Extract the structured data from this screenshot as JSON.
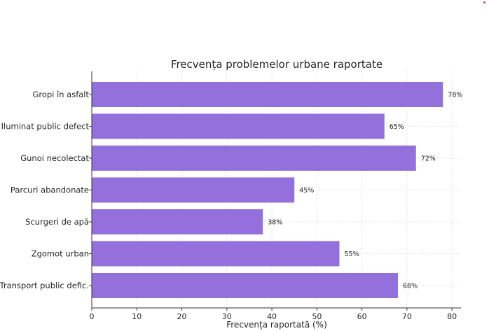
{
  "chart_data": {
    "type": "bar",
    "orientation": "horizontal",
    "title": "Frecvența problemelor urbane raportate",
    "xlabel": "Frecvența raportată (%)",
    "ylabel": "",
    "xlim": [
      0,
      82
    ],
    "xticks": [
      0,
      10,
      20,
      30,
      40,
      50,
      60,
      70,
      80
    ],
    "grid": true,
    "bar_color": "#9370db",
    "categories": [
      "Gropi în asfalt",
      "Iluminat public defect",
      "Gunoi necolectat",
      "Parcuri abandonate",
      "Scurgeri de apă",
      "Zgomot urban",
      "Transport public defic."
    ],
    "values": [
      78,
      65,
      72,
      45,
      38,
      55,
      68
    ],
    "value_labels": [
      "78%",
      "65%",
      "72%",
      "45%",
      "38%",
      "55%",
      "68%"
    ]
  }
}
